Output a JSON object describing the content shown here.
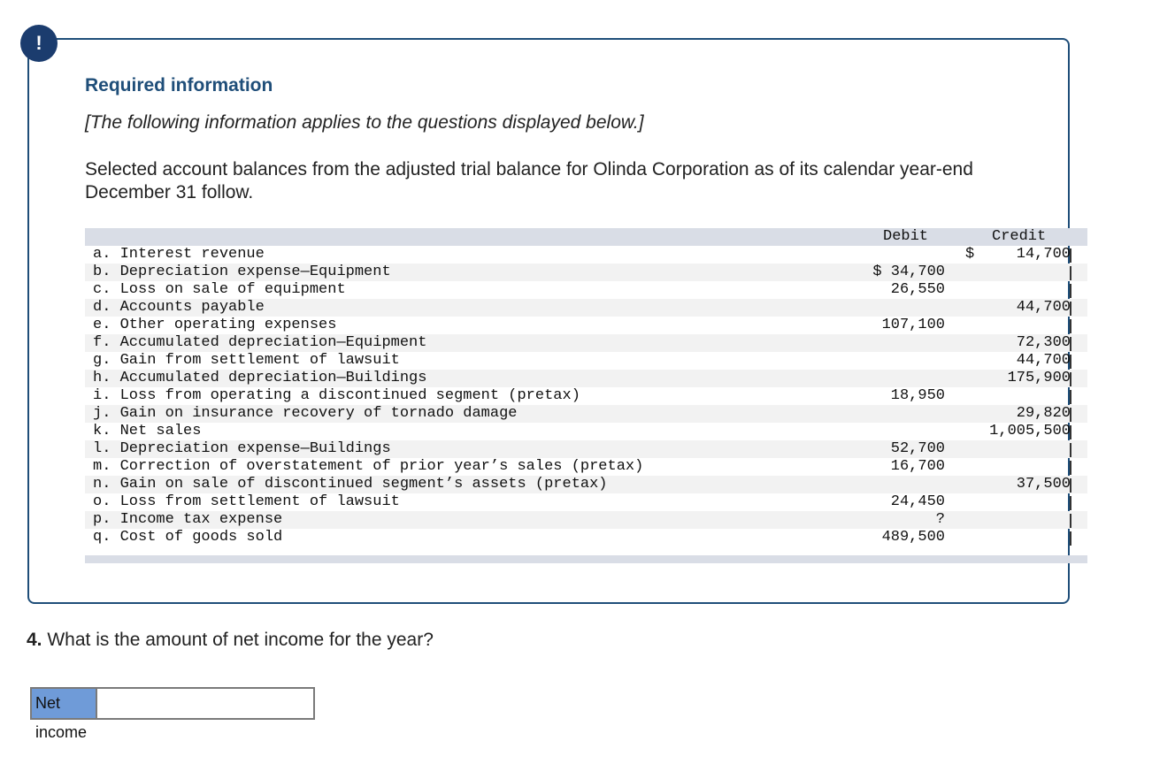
{
  "alert_icon": {
    "glyph": "!",
    "icon": "alert-icon"
  },
  "panel": {
    "heading": "Required information",
    "note": "[The following information applies to the questions displayed below.]",
    "intro": "Selected account balances from the adjusted trial balance for Olinda Corporation as of its calendar year-end December 31 follow."
  },
  "trial_balance": {
    "debit_header": "Debit",
    "credit_header": "Credit",
    "rows": [
      {
        "label": "a. Interest revenue",
        "debit": "",
        "credit_sign": "$",
        "credit": "14,700"
      },
      {
        "label": "b. Depreciation expense—Equipment",
        "debit": "$ 34,700",
        "credit_sign": "",
        "credit": ""
      },
      {
        "label": "c. Loss on sale of equipment",
        "debit": "26,550",
        "credit_sign": "",
        "credit": ""
      },
      {
        "label": "d. Accounts payable",
        "debit": "",
        "credit_sign": "",
        "credit": "44,700"
      },
      {
        "label": "e. Other operating expenses",
        "debit": "107,100",
        "credit_sign": "",
        "credit": ""
      },
      {
        "label": "f. Accumulated depreciation—Equipment",
        "debit": "",
        "credit_sign": "",
        "credit": "72,300"
      },
      {
        "label": "g. Gain from settlement of lawsuit",
        "debit": "",
        "credit_sign": "",
        "credit": "44,700"
      },
      {
        "label": "h. Accumulated depreciation—Buildings",
        "debit": "",
        "credit_sign": "",
        "credit": "175,900"
      },
      {
        "label": "i. Loss from operating a discontinued segment (pretax)",
        "debit": "18,950",
        "credit_sign": "",
        "credit": ""
      },
      {
        "label": "j. Gain on insurance recovery of tornado damage",
        "debit": "",
        "credit_sign": "",
        "credit": "29,820"
      },
      {
        "label": "k. Net sales",
        "debit": "",
        "credit_sign": "",
        "credit": "1,005,500"
      },
      {
        "label": "l. Depreciation expense—Buildings",
        "debit": "52,700",
        "credit_sign": "",
        "credit": ""
      },
      {
        "label": "m. Correction of overstatement of prior year’s sales (pretax)",
        "debit": "16,700",
        "credit_sign": "",
        "credit": ""
      },
      {
        "label": "n. Gain on sale of discontinued segment’s assets (pretax)",
        "debit": "",
        "credit_sign": "",
        "credit": "37,500"
      },
      {
        "label": "o. Loss from settlement of lawsuit",
        "debit": "24,450",
        "credit_sign": "",
        "credit": ""
      },
      {
        "label": "p. Income tax expense",
        "debit": "?",
        "credit_sign": "",
        "credit": ""
      },
      {
        "label": "q. Cost of goods sold",
        "debit": "489,500",
        "credit_sign": "",
        "credit": ""
      }
    ]
  },
  "question": {
    "number": "4.",
    "text": " What is the amount of net income for the year?"
  },
  "answer": {
    "label": "Net income",
    "value": ""
  },
  "colors": {
    "accent": "#1f4e79",
    "icon_bg": "#1b3c6e",
    "answer_label_bg": "#6f9bd8",
    "table_header_bg": "#d9dde6"
  }
}
